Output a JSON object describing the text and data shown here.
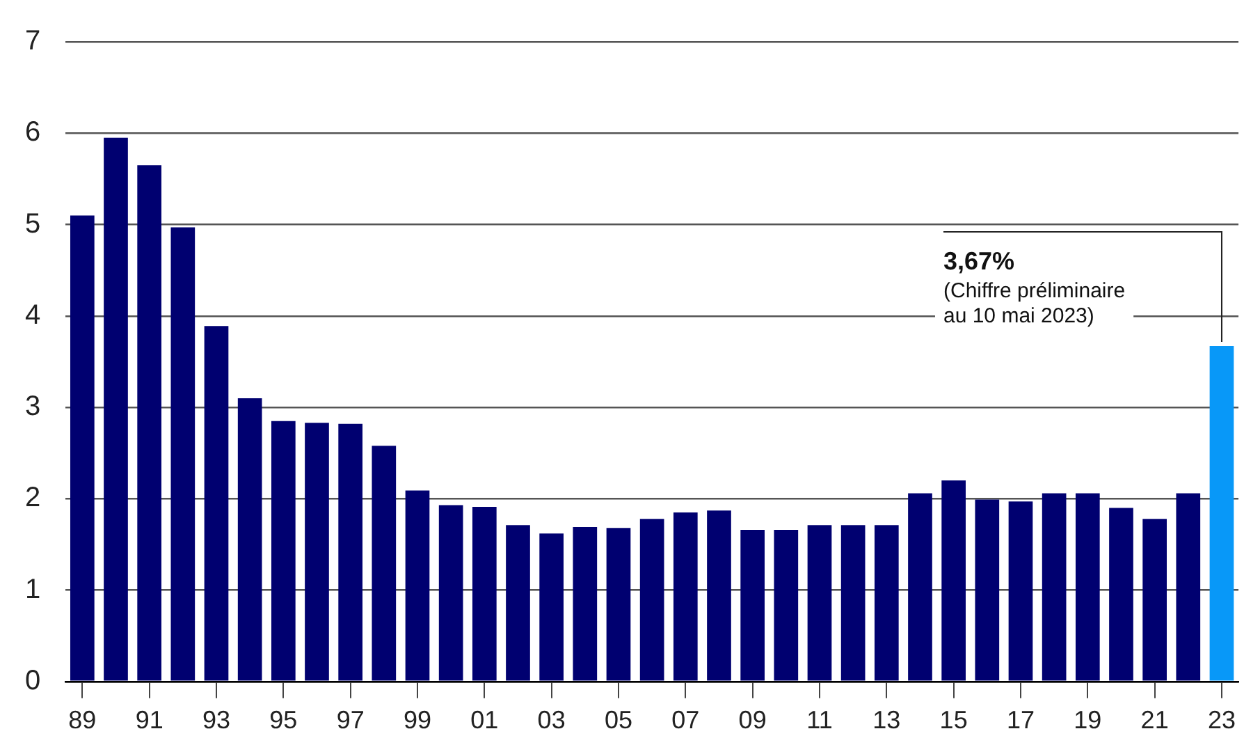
{
  "chart_data": {
    "type": "bar",
    "categories": [
      "89",
      null,
      "91",
      null,
      "93",
      null,
      "95",
      null,
      "97",
      null,
      "99",
      null,
      "01",
      null,
      "03",
      null,
      "05",
      null,
      "07",
      null,
      "09",
      null,
      "11",
      null,
      "13",
      null,
      "15",
      null,
      "17",
      null,
      "19",
      null,
      "21",
      null,
      "23"
    ],
    "values": [
      5.1,
      5.95,
      5.65,
      4.97,
      3.89,
      3.1,
      2.85,
      2.83,
      2.82,
      2.58,
      2.09,
      1.93,
      1.91,
      1.71,
      1.62,
      1.69,
      1.68,
      1.78,
      1.85,
      1.87,
      1.66,
      1.66,
      1.71,
      1.71,
      1.71,
      2.06,
      2.2,
      1.99,
      1.97,
      2.06,
      2.06,
      1.9,
      1.78,
      2.06,
      3.67
    ],
    "colors": [
      "#000070",
      "#000070",
      "#000070",
      "#000070",
      "#000070",
      "#000070",
      "#000070",
      "#000070",
      "#000070",
      "#000070",
      "#000070",
      "#000070",
      "#000070",
      "#000070",
      "#000070",
      "#000070",
      "#000070",
      "#000070",
      "#000070",
      "#000070",
      "#000070",
      "#000070",
      "#000070",
      "#000070",
      "#000070",
      "#000070",
      "#000070",
      "#000070",
      "#000070",
      "#000070",
      "#000070",
      "#000070",
      "#000070",
      "#000070",
      "#0898f8"
    ],
    "ylim": [
      0,
      7
    ],
    "yticks": [
      0,
      1,
      2,
      3,
      4,
      5,
      6,
      7
    ],
    "grid": "y",
    "legend": false,
    "annotations": [
      {
        "text": "3,67%\n(Chiffre préliminaire\nau 10 mai 2023)",
        "x": "23",
        "y": 3.67
      }
    ]
  }
}
